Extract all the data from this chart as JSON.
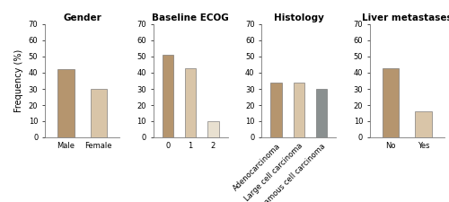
{
  "panels": [
    {
      "title": "Gender",
      "categories": [
        "Male",
        "Female"
      ],
      "values": [
        42,
        30
      ],
      "colors": [
        "#b5956e",
        "#d9c5a8"
      ],
      "rotate_labels": false
    },
    {
      "title": "Baseline ECOG",
      "categories": [
        "0",
        "1",
        "2"
      ],
      "values": [
        51,
        43,
        10
      ],
      "colors": [
        "#b5956e",
        "#d9c5a8",
        "#e8e0d0"
      ],
      "rotate_labels": false
    },
    {
      "title": "Histology",
      "categories": [
        "Adenocarcinoma",
        "Large cell carcinoma",
        "Squamous cell carcinoma"
      ],
      "values": [
        34,
        34,
        30
      ],
      "colors": [
        "#b5956e",
        "#d9c5a8",
        "#8a9090"
      ],
      "rotate_labels": true
    },
    {
      "title": "Liver metastases",
      "categories": [
        "No",
        "Yes"
      ],
      "values": [
        43,
        16
      ],
      "colors": [
        "#b5956e",
        "#d9c5a8"
      ],
      "rotate_labels": false
    }
  ],
  "ylabel": "Frequency (%)",
  "ylim": [
    0,
    70
  ],
  "yticks": [
    0,
    10,
    20,
    30,
    40,
    50,
    60,
    70
  ],
  "background_color": "#ffffff",
  "bar_width": 0.5,
  "title_fontsize": 7.5,
  "label_fontsize": 6.0,
  "ylabel_fontsize": 7.0,
  "ytick_fontsize": 6.0
}
